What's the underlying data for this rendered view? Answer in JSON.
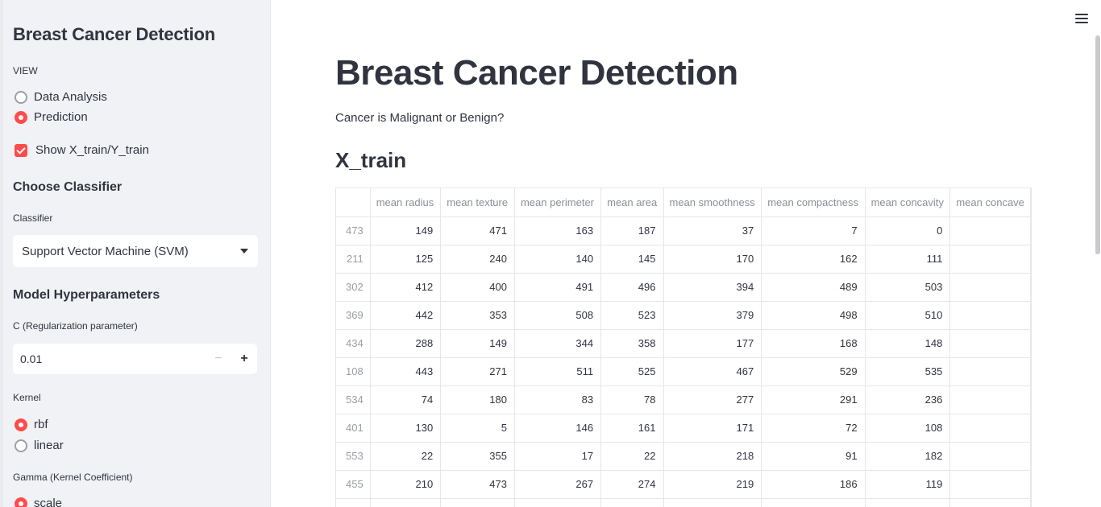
{
  "sidebar": {
    "title": "Breast Cancer Detection",
    "view_label": "VIEW",
    "view_options": [
      "Data Analysis",
      "Prediction"
    ],
    "view_selected": "Prediction",
    "show_checkbox_label": "Show X_train/Y_train",
    "show_checkbox_checked": true,
    "classifier_heading": "Choose Classifier",
    "classifier_label": "Classifier",
    "classifier_value": "Support Vector Machine (SVM)",
    "hyper_heading": "Model Hyperparameters",
    "c_label": "C (Regularization parameter)",
    "c_value": "0.01",
    "minus_glyph": "−",
    "plus_glyph": "+",
    "kernel_label": "Kernel",
    "kernel_options": [
      "rbf",
      "linear"
    ],
    "kernel_selected": "rbf",
    "gamma_label": "Gamma (Kernel Coefficient)",
    "gamma_options": [
      "scale"
    ],
    "gamma_selected": "scale"
  },
  "main": {
    "title": "Breast Cancer Detection",
    "subtitle": "Cancer is Malignant or Benign?",
    "section": "X_train",
    "table": {
      "columns": [
        "",
        "mean radius",
        "mean texture",
        "mean perimeter",
        "mean area",
        "mean smoothness",
        "mean compactness",
        "mean concavity",
        "mean concave"
      ],
      "rows": [
        [
          "473",
          "149",
          "471",
          "163",
          "187",
          "37",
          "7",
          "0",
          ""
        ],
        [
          "211",
          "125",
          "240",
          "140",
          "145",
          "170",
          "162",
          "111",
          ""
        ],
        [
          "302",
          "412",
          "400",
          "491",
          "496",
          "394",
          "489",
          "503",
          ""
        ],
        [
          "369",
          "442",
          "353",
          "508",
          "523",
          "379",
          "498",
          "510",
          ""
        ],
        [
          "434",
          "288",
          "149",
          "344",
          "358",
          "177",
          "168",
          "148",
          ""
        ],
        [
          "108",
          "443",
          "271",
          "511",
          "525",
          "467",
          "529",
          "535",
          ""
        ],
        [
          "534",
          "74",
          "180",
          "83",
          "78",
          "277",
          "291",
          "236",
          ""
        ],
        [
          "401",
          "130",
          "5",
          "146",
          "161",
          "171",
          "72",
          "108",
          ""
        ],
        [
          "553",
          "22",
          "355",
          "17",
          "22",
          "218",
          "91",
          "182",
          ""
        ],
        [
          "455",
          "210",
          "473",
          "267",
          "274",
          "219",
          "186",
          "119",
          ""
        ],
        [
          "",
          "",
          "",
          "",
          "",
          "",
          "",
          "",
          ""
        ]
      ]
    }
  },
  "colors": {
    "accent": "#ff4b4b",
    "sidebar_bg": "#f0f2f6",
    "text": "#31333f"
  },
  "icons": {
    "menu": "hamburger-icon",
    "select": "chevron-down-icon"
  }
}
